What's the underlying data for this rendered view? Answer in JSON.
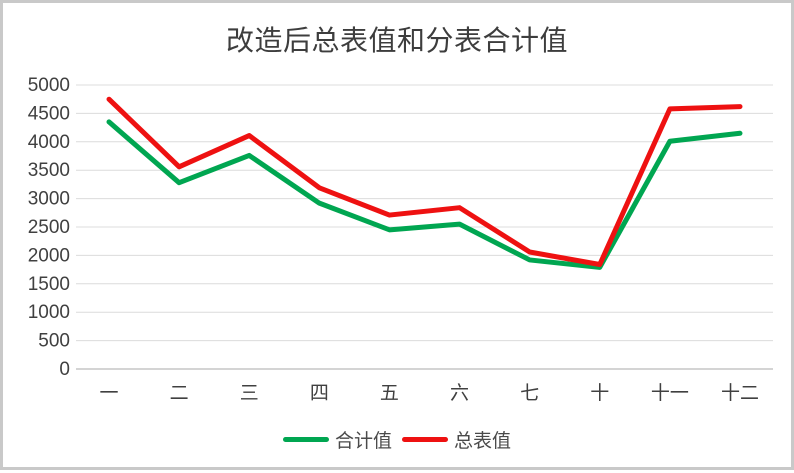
{
  "chart_data": {
    "type": "line",
    "title": "改造后总表值和分表合计值",
    "categories": [
      "一",
      "二",
      "三",
      "四",
      "五",
      "六",
      "七",
      "十",
      "十一",
      "十二"
    ],
    "series": [
      {
        "name": "合计值",
        "color": "#00a651",
        "values": [
          4350,
          3280,
          3760,
          2920,
          2450,
          2550,
          1920,
          1790,
          4010,
          4150
        ]
      },
      {
        "name": "总表值",
        "color": "#ee1111",
        "values": [
          4750,
          3560,
          4110,
          3190,
          2710,
          2840,
          2060,
          1840,
          4580,
          4620
        ]
      }
    ],
    "xlabel": "",
    "ylabel": "",
    "ylim": [
      0,
      5000
    ],
    "yticks": [
      0,
      500,
      1000,
      1500,
      2000,
      2500,
      3000,
      3500,
      4000,
      4500,
      5000
    ],
    "grid": true,
    "legend_position": "bottom"
  },
  "styles": {
    "background": "#ffffff",
    "border_color": "#c9c9c9",
    "title_color": "#3d3d3d",
    "axis_label_color": "#404040",
    "gridline_color": "#dcdcdc",
    "axis_line_color": "#d4d4d4"
  }
}
